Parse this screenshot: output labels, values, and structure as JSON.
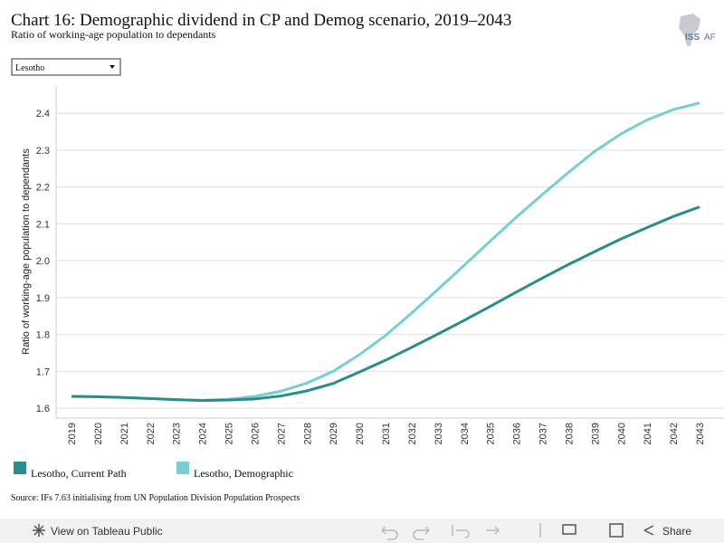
{
  "chart_data": {
    "type": "line",
    "title": "Chart 16: Demographic dividend in CP and Demog scenario, 2019–2043",
    "subtitle": "Ratio of working-age population to dependants",
    "y_label": "Ratio of working-age population to dependants",
    "categories": [
      "2019",
      "2020",
      "2021",
      "2022",
      "2023",
      "2024",
      "2025",
      "2026",
      "2027",
      "2028",
      "2029",
      "2030",
      "2031",
      "2032",
      "2033",
      "2034",
      "2035",
      "2036",
      "2037",
      "2038",
      "2039",
      "2040",
      "2041",
      "2042",
      "2043"
    ],
    "series": [
      {
        "name": "Lesotho, Current Path",
        "color": "#2b8c8c",
        "values": [
          1.632,
          1.631,
          1.629,
          1.626,
          1.623,
          1.621,
          1.622,
          1.625,
          1.633,
          1.647,
          1.667,
          1.698,
          1.73,
          1.765,
          1.801,
          1.838,
          1.876,
          1.915,
          1.953,
          1.99,
          2.025,
          2.059,
          2.09,
          2.12,
          2.146
        ]
      },
      {
        "name": "Lesotho, Demographic",
        "color": "#76cfd3",
        "values": [
          1.632,
          1.631,
          1.629,
          1.626,
          1.623,
          1.621,
          1.624,
          1.632,
          1.646,
          1.668,
          1.7,
          1.745,
          1.797,
          1.858,
          1.922,
          1.987,
          2.053,
          2.118,
          2.18,
          2.24,
          2.297,
          2.344,
          2.382,
          2.41,
          2.428
        ]
      }
    ],
    "ylim": [
      1.573,
      2.474
    ],
    "yticks": [
      1.6,
      1.7,
      1.8,
      1.9,
      {
        "value": 2,
        "label": "2.0"
      },
      2.1,
      2.2,
      2.3,
      2.4
    ],
    "grid": true
  },
  "dropdown": "Lesotho",
  "logo": [
    "ISS",
    "AF"
  ],
  "source": "Source: IFs 7.63 initialising from UN Population Division Population Prospects",
  "toolbar": {
    "view": "View on Tableau Public",
    "share": "Share"
  }
}
